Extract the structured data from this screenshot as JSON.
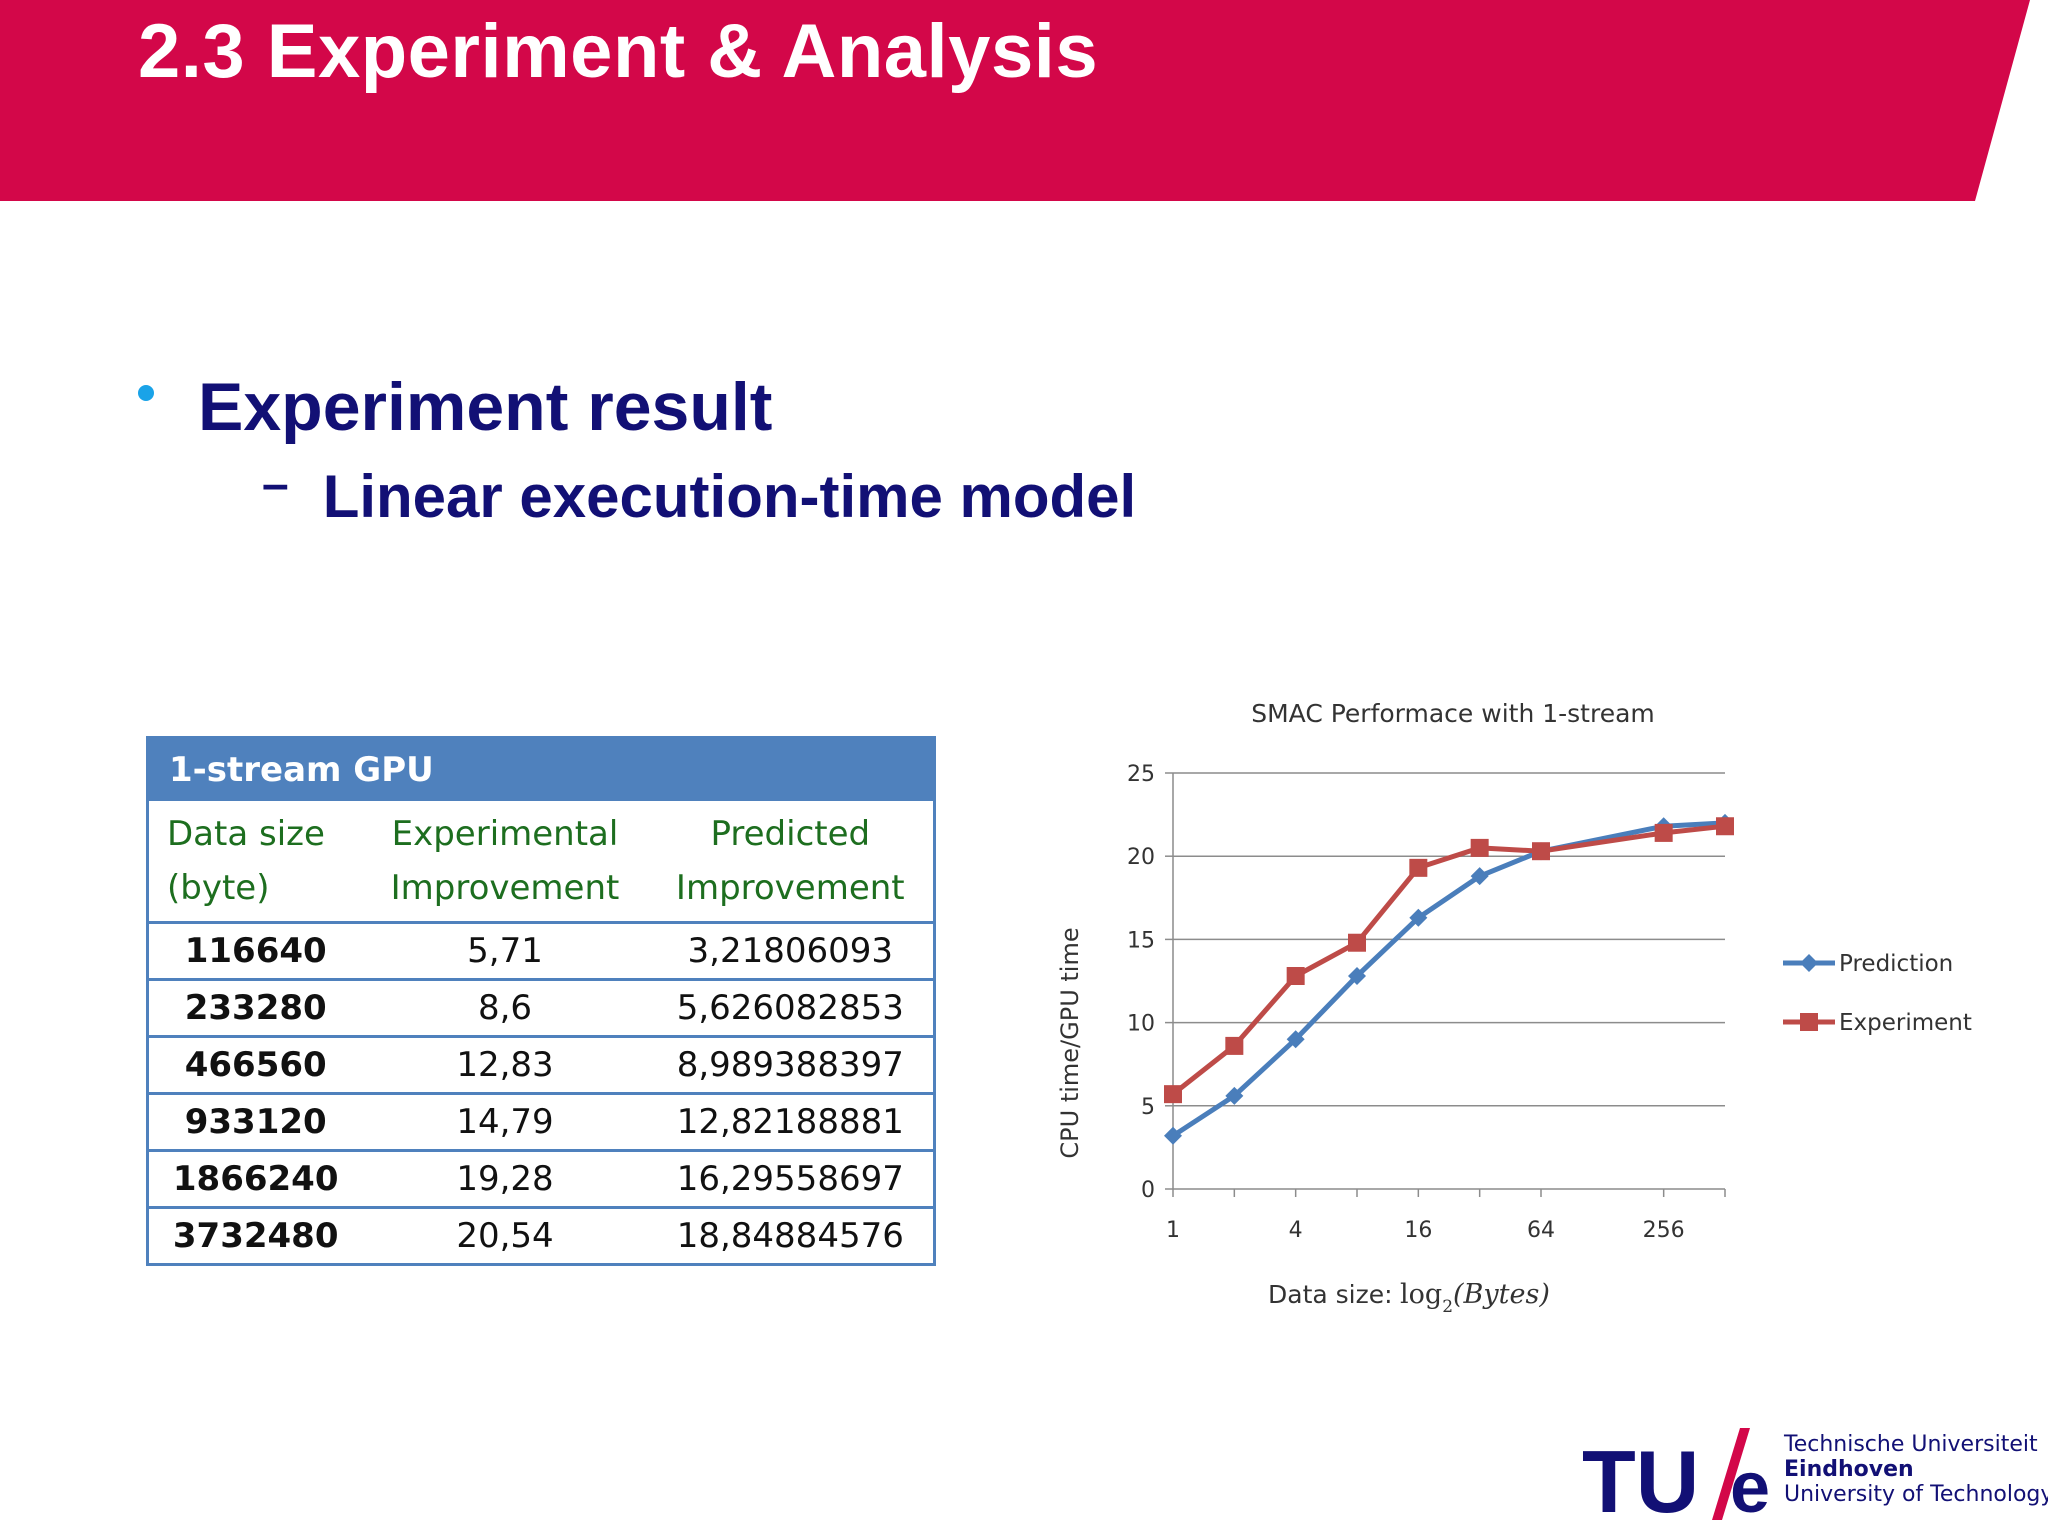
{
  "slide": {
    "title": "2.3 Experiment & Analysis",
    "bullet": "Experiment result",
    "sub_bullet_marker": "–",
    "sub_bullet": "Linear execution-time model"
  },
  "colors": {
    "header_band": "#d30749",
    "bullet_text": "#121075",
    "bullet_dot": "#1aa3e8",
    "table_accent": "#4f81bd",
    "table_header_text": "#1d6e1f",
    "series_prediction": "#4a7ebb",
    "series_experiment": "#be4b48",
    "logo_slash": "#d30749"
  },
  "table": {
    "caption": "1-stream GPU",
    "headers": [
      [
        "Data size",
        "(byte)"
      ],
      [
        "Experimental",
        "Improvement"
      ],
      [
        "Predicted",
        "Improvement"
      ]
    ],
    "rows": [
      [
        "116640",
        "5,71",
        "3,21806093"
      ],
      [
        "233280",
        "8,6",
        "5,626082853"
      ],
      [
        "466560",
        "12,83",
        "8,989388397"
      ],
      [
        "933120",
        "14,79",
        "12,82188881"
      ],
      [
        "1866240",
        "19,28",
        "16,29558697"
      ],
      [
        "3732480",
        "20,54",
        "18,84884576"
      ]
    ]
  },
  "chart_data": {
    "type": "line",
    "title": "SMAC Performace with 1-stream",
    "xlabel_prefix": "Data size:",
    "xlabel_math": "log",
    "xlabel_math_sub": "2",
    "xlabel_math_arg": "(Bytes)",
    "ylabel": "CPU time/GPU time",
    "x_scale": "log2",
    "x_ticks": [
      1,
      4,
      16,
      64,
      256
    ],
    "x_tick_labels": [
      "1",
      "4",
      "16",
      "64",
      "256"
    ],
    "x_range": [
      1,
      512
    ],
    "y_ticks": [
      0,
      5,
      10,
      15,
      20,
      25
    ],
    "y_tick_labels": [
      "0",
      "5",
      "10",
      "15",
      "20",
      "25"
    ],
    "ylim": [
      0,
      25
    ],
    "grid": true,
    "legend_position": "right",
    "x": [
      1,
      2,
      4,
      8,
      16,
      32,
      64,
      256,
      512
    ],
    "series": [
      {
        "name": "Prediction",
        "marker": "diamond",
        "values": [
          3.2,
          5.6,
          9.0,
          12.8,
          16.3,
          18.8,
          20.3,
          21.8,
          22.0
        ]
      },
      {
        "name": "Experiment",
        "marker": "square",
        "values": [
          5.7,
          8.6,
          12.8,
          14.8,
          19.3,
          20.5,
          20.3,
          21.4,
          21.8
        ]
      }
    ]
  },
  "logo": {
    "mark_left": "TU",
    "mark_right": "e",
    "line1": "Technische Universiteit",
    "line2": "Eindhoven",
    "line3": "University of Technology"
  }
}
